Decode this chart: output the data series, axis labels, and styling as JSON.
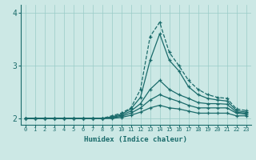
{
  "xlabel": "Humidex (Indice chaleur)",
  "background_color": "#cce8e5",
  "grid_color": "#99ccc8",
  "line_color": "#1a6b6b",
  "xlim": [
    -0.5,
    23.5
  ],
  "ylim": [
    1.88,
    4.15
  ],
  "xticks": [
    0,
    1,
    2,
    3,
    4,
    5,
    6,
    7,
    8,
    9,
    10,
    11,
    12,
    13,
    14,
    15,
    16,
    17,
    18,
    19,
    20,
    21,
    22,
    23
  ],
  "yticks": [
    2,
    3,
    4
  ],
  "series": [
    {
      "y": [
        2.0,
        2.0,
        2.0,
        2.0,
        2.0,
        2.0,
        2.0,
        2.0,
        2.0,
        2.05,
        2.1,
        2.2,
        2.55,
        3.55,
        3.82,
        3.25,
        3.0,
        2.72,
        2.55,
        2.45,
        2.4,
        2.38,
        2.18,
        2.15
      ],
      "linestyle": "--",
      "linewidth": 0.9,
      "marker": true
    },
    {
      "y": [
        2.0,
        2.0,
        2.0,
        2.0,
        2.0,
        2.0,
        2.0,
        2.0,
        2.0,
        2.03,
        2.08,
        2.18,
        2.4,
        3.1,
        3.6,
        3.1,
        2.9,
        2.6,
        2.45,
        2.38,
        2.35,
        2.33,
        2.15,
        2.12
      ],
      "linestyle": "-",
      "linewidth": 0.9,
      "marker": true
    },
    {
      "y": [
        2.0,
        2.0,
        2.0,
        2.0,
        2.0,
        2.0,
        2.0,
        2.0,
        2.0,
        2.02,
        2.06,
        2.14,
        2.28,
        2.55,
        2.72,
        2.55,
        2.45,
        2.38,
        2.3,
        2.28,
        2.28,
        2.27,
        2.12,
        2.1
      ],
      "linestyle": "-",
      "linewidth": 0.9,
      "marker": true
    },
    {
      "y": [
        2.0,
        2.0,
        2.0,
        2.0,
        2.0,
        2.0,
        2.0,
        2.0,
        2.0,
        2.01,
        2.04,
        2.1,
        2.2,
        2.35,
        2.45,
        2.38,
        2.32,
        2.25,
        2.2,
        2.2,
        2.2,
        2.2,
        2.1,
        2.08
      ],
      "linestyle": "-",
      "linewidth": 0.9,
      "marker": true
    },
    {
      "y": [
        2.0,
        2.0,
        2.0,
        2.0,
        2.0,
        2.0,
        2.0,
        2.0,
        2.0,
        2.0,
        2.02,
        2.06,
        2.12,
        2.2,
        2.25,
        2.2,
        2.18,
        2.14,
        2.1,
        2.1,
        2.1,
        2.1,
        2.05,
        2.05
      ],
      "linestyle": "-",
      "linewidth": 0.9,
      "marker": true
    }
  ]
}
